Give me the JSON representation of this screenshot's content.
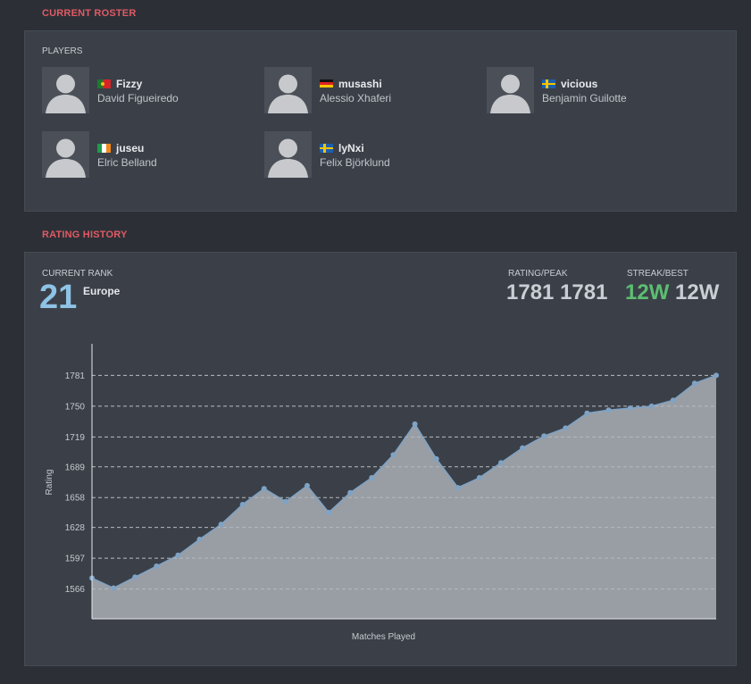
{
  "roster": {
    "section_title": "CURRENT ROSTER",
    "players_label": "PLAYERS",
    "players": [
      {
        "nick": "Fizzy",
        "name": "David Figueiredo",
        "flag": "portugal"
      },
      {
        "nick": "musashi",
        "name": "Alessio Xhaferi",
        "flag": "germany"
      },
      {
        "nick": "vicious",
        "name": "Benjamin Guilotte",
        "flag": "sweden"
      },
      {
        "nick": "juseu",
        "name": "Elric Belland",
        "flag": "ireland"
      },
      {
        "nick": "lyNxi",
        "name": "Felix Björklund",
        "flag": "sweden"
      }
    ]
  },
  "rating": {
    "section_title": "RATING HISTORY",
    "current_rank_label": "CURRENT RANK",
    "rank": "21",
    "region": "Europe",
    "rating_peak_label": "RATING/PEAK",
    "rating": "1781",
    "peak": "1781",
    "streak_best_label": "STREAK/BEST",
    "streak": "12W",
    "best": "12W",
    "colors": {
      "rank": "#8ec3e6",
      "streak": "#5cbf71",
      "accent": "#e05a65",
      "line": "#7fa3c5"
    }
  },
  "chart_data": {
    "type": "area",
    "xlabel": "Matches Played",
    "ylabel": "Rating",
    "yticks": [
      1566,
      1597,
      1628,
      1658,
      1689,
      1719,
      1750,
      1781
    ],
    "ylim": [
      1536,
      1811
    ],
    "grid": "dashed horizontal",
    "values": [
      1577,
      1567,
      1578,
      1589,
      1600,
      1616,
      1631,
      1651,
      1667,
      1654,
      1670,
      1643,
      1663,
      1678,
      1701,
      1732,
      1697,
      1668,
      1678,
      1693,
      1708,
      1720,
      1728,
      1743,
      1746,
      1748,
      1750,
      1756,
      1773,
      1781
    ]
  }
}
